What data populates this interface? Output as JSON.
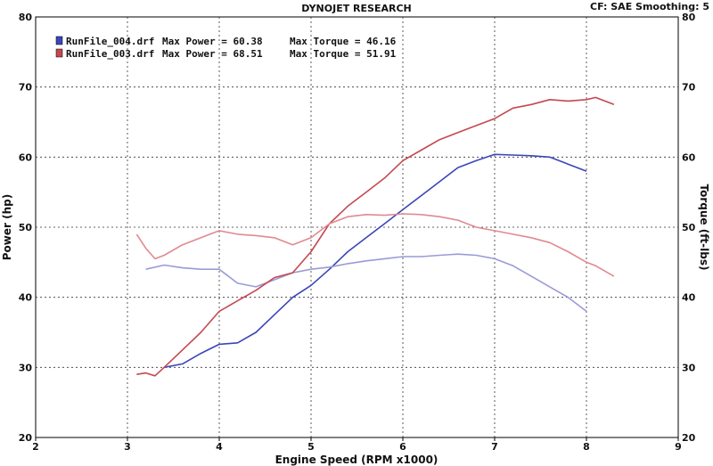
{
  "header": {
    "title": "DYNOJET RESEARCH",
    "settings": "CF: SAE  Smoothing: 5"
  },
  "legend": [
    {
      "file": "RunFile_004.drf",
      "power_label": "Max Power = 60.38",
      "torque_label": "Max Torque = 46.16",
      "color": "#3a46b8"
    },
    {
      "file": "RunFile_003.drf",
      "power_label": "Max Power = 68.51",
      "torque_label": "Max Torque = 51.91",
      "color": "#c4484f"
    }
  ],
  "chart_data": {
    "type": "line",
    "title": "DYNOJET RESEARCH",
    "xlabel": "Engine Speed (RPM x1000)",
    "ylabel": "Power (hp)",
    "y2label": "Torque (ft-lbs)",
    "xlim": [
      2,
      9
    ],
    "ylim": [
      20,
      80
    ],
    "y2lim": [
      20,
      80
    ],
    "xticks": [
      2,
      3,
      4,
      5,
      6,
      7,
      8,
      9
    ],
    "yticks": [
      20,
      30,
      40,
      50,
      60,
      70,
      80
    ],
    "grid": true,
    "legend_position": "top-left",
    "series": [
      {
        "name": "RunFile_004.drf",
        "measure": "power",
        "color": "#3a46b8",
        "x": [
          3.4,
          3.6,
          3.8,
          4.0,
          4.2,
          4.4,
          4.6,
          4.8,
          5.0,
          5.2,
          5.4,
          5.6,
          5.8,
          6.0,
          6.2,
          6.4,
          6.6,
          6.8,
          7.0,
          7.2,
          7.4,
          7.6,
          7.8,
          8.0
        ],
        "y": [
          30.0,
          30.5,
          32.0,
          33.3,
          33.5,
          35.0,
          37.5,
          40.0,
          41.7,
          44.0,
          46.5,
          48.5,
          50.5,
          52.5,
          54.5,
          56.5,
          58.5,
          59.5,
          60.38,
          60.3,
          60.2,
          60.0,
          59.0,
          58.0
        ]
      },
      {
        "name": "RunFile_004.drf",
        "measure": "torque",
        "color": "#9a9ad8",
        "x": [
          3.2,
          3.4,
          3.6,
          3.8,
          4.0,
          4.2,
          4.4,
          4.6,
          4.8,
          5.0,
          5.2,
          5.4,
          5.6,
          5.8,
          6.0,
          6.2,
          6.4,
          6.6,
          6.8,
          7.0,
          7.2,
          7.4,
          7.6,
          7.8,
          8.0
        ],
        "y": [
          44.0,
          44.6,
          44.2,
          44.0,
          44.0,
          42.0,
          41.5,
          42.5,
          43.5,
          44.0,
          44.3,
          44.8,
          45.2,
          45.5,
          45.8,
          45.8,
          46.0,
          46.16,
          46.0,
          45.5,
          44.5,
          43.0,
          41.5,
          40.0,
          38.0
        ]
      },
      {
        "name": "RunFile_003.drf",
        "measure": "power",
        "color": "#c4484f",
        "x": [
          3.1,
          3.2,
          3.3,
          3.4,
          3.6,
          3.8,
          4.0,
          4.2,
          4.4,
          4.6,
          4.8,
          5.0,
          5.2,
          5.4,
          5.6,
          5.8,
          6.0,
          6.2,
          6.4,
          6.6,
          6.8,
          7.0,
          7.2,
          7.4,
          7.6,
          7.8,
          8.0,
          8.1,
          8.3
        ],
        "y": [
          29.0,
          29.2,
          28.8,
          30.0,
          32.5,
          35.0,
          38.0,
          39.5,
          41.0,
          42.8,
          43.5,
          46.5,
          50.5,
          53.0,
          55.0,
          57.0,
          59.5,
          61.0,
          62.5,
          63.5,
          64.5,
          65.5,
          67.0,
          67.5,
          68.2,
          68.0,
          68.2,
          68.51,
          67.5
        ]
      },
      {
        "name": "RunFile_003.drf",
        "measure": "torque",
        "color": "#e08a90",
        "x": [
          3.1,
          3.2,
          3.3,
          3.4,
          3.6,
          3.8,
          4.0,
          4.2,
          4.4,
          4.6,
          4.8,
          5.0,
          5.2,
          5.4,
          5.6,
          5.8,
          6.0,
          6.2,
          6.4,
          6.6,
          6.8,
          7.0,
          7.2,
          7.4,
          7.6,
          7.8,
          8.0,
          8.1,
          8.3
        ],
        "y": [
          49.0,
          47.0,
          45.5,
          46.0,
          47.5,
          48.5,
          49.5,
          49.0,
          48.8,
          48.5,
          47.5,
          48.5,
          50.5,
          51.5,
          51.8,
          51.7,
          51.91,
          51.8,
          51.5,
          51.0,
          50.0,
          49.5,
          49.0,
          48.5,
          47.8,
          46.5,
          45.0,
          44.5,
          43.0
        ]
      }
    ]
  }
}
